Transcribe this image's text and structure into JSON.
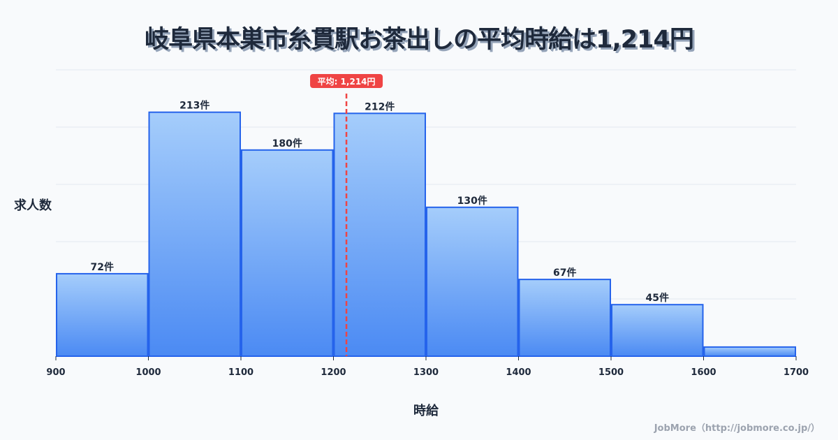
{
  "header": {
    "title": "岐阜県本巣市糸貫駅お茶出しの平均時給は1,214円"
  },
  "axes": {
    "ylabel": "求人数",
    "xlabel": "時給"
  },
  "credit": "JobMore（http://jobmore.co.jp/）",
  "colors": {
    "bar_top": "#a5cdfb",
    "bar_bottom": "#4b8af3",
    "bar_stroke": "#2563eb",
    "avg_line": "#ef4444",
    "grid": "#e2e8f0",
    "text": "#1e293b",
    "background": "#f8fafc"
  },
  "chart_data": {
    "type": "bar",
    "title": "岐阜県本巣市糸貫駅お茶出しの平均時給は1,214円",
    "xlabel": "時給",
    "ylabel": "求人数",
    "x_ticks": [
      900,
      1000,
      1100,
      1200,
      1300,
      1400,
      1500,
      1600,
      1700
    ],
    "bins": [
      {
        "from": 900,
        "to": 1000,
        "value": 72,
        "label": "72件"
      },
      {
        "from": 1000,
        "to": 1100,
        "value": 213,
        "label": "213件"
      },
      {
        "from": 1100,
        "to": 1200,
        "value": 180,
        "label": "180件"
      },
      {
        "from": 1200,
        "to": 1300,
        "value": 212,
        "label": "212件"
      },
      {
        "from": 1300,
        "to": 1400,
        "value": 130,
        "label": "130件"
      },
      {
        "from": 1400,
        "to": 1500,
        "value": 67,
        "label": "67件"
      },
      {
        "from": 1500,
        "to": 1600,
        "value": 45,
        "label": "45件"
      },
      {
        "from": 1600,
        "to": 1700,
        "value": 8,
        "label": ""
      }
    ],
    "average": {
      "value": 1214,
      "label": "平均: 1,214円"
    },
    "ylim": [
      0,
      250
    ],
    "grid": true,
    "gridlines": 5,
    "legend": "none"
  }
}
